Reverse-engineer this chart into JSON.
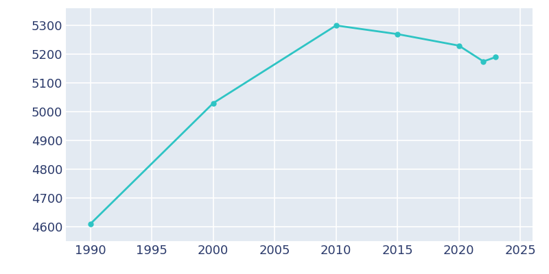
{
  "years": [
    1990,
    2000,
    2010,
    2015,
    2020,
    2022,
    2023
  ],
  "population": [
    4610,
    5030,
    5300,
    5270,
    5230,
    5175,
    5190
  ],
  "line_color": "#2EC4C4",
  "marker_color": "#2EC4C4",
  "fig_bg_color": "#FFFFFF",
  "plot_bg_color": "#E3EAF2",
  "grid_color": "#FFFFFF",
  "tick_color": "#2B3A6B",
  "xlim": [
    1988,
    2026
  ],
  "ylim": [
    4550,
    5360
  ],
  "yticks": [
    4600,
    4700,
    4800,
    4900,
    5000,
    5100,
    5200,
    5300
  ],
  "xticks": [
    1990,
    1995,
    2000,
    2005,
    2010,
    2015,
    2020,
    2025
  ],
  "linewidth": 2.0,
  "markersize": 5,
  "tick_labelsize": 13
}
